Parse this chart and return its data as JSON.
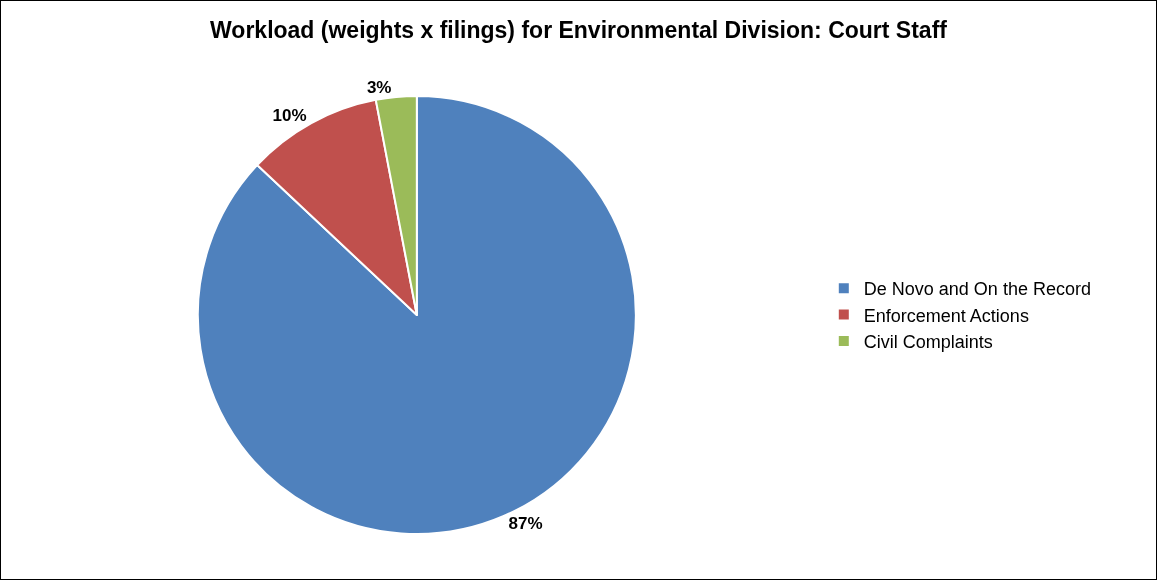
{
  "chart_data": {
    "type": "pie",
    "title": "Workload (weights x filings) for Environmental Division: Court Staff",
    "categories": [
      "De Novo and On the Record",
      "Enforcement Actions",
      "Civil Complaints"
    ],
    "values": [
      87,
      10,
      3
    ],
    "value_labels": [
      "87%",
      "10%",
      "3%"
    ],
    "colors": [
      "#4f81bd",
      "#c0504d",
      "#9bbb59"
    ],
    "legend": "right"
  }
}
